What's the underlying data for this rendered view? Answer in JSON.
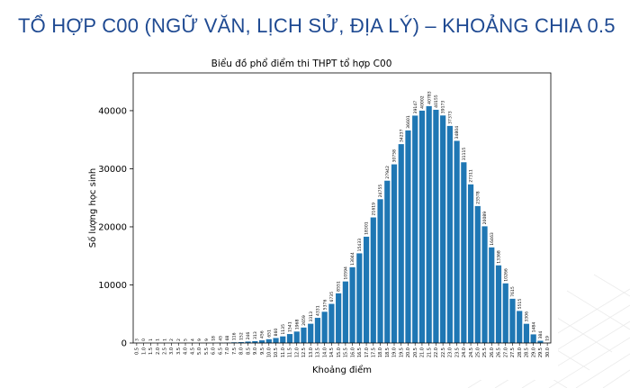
{
  "slide": {
    "title": "TỔ HỢP C00 (NGỮ VĂN, LỊCH SỬ, ĐỊA LÝ) – KHOẢNG CHIA 0.5"
  },
  "chart_data": {
    "type": "bar",
    "title": "Biểu đồ phổ điểm thi THPT tổ hợp C00",
    "xlabel": "Khoảng điểm",
    "ylabel": "Số lượng học sinh",
    "ylim": [
      0,
      46500
    ],
    "yticks": [
      0,
      10000,
      20000,
      30000,
      40000
    ],
    "bar_color": "#1f77b4",
    "grid": false,
    "categories": [
      "0.5",
      "1.0",
      "1.5",
      "2.0",
      "2.5",
      "3.0",
      "3.5",
      "4.0",
      "4.5",
      "5.0",
      "5.5",
      "6.0",
      "6.5",
      "7.0",
      "7.5",
      "8.0",
      "8.5",
      "9.0",
      "9.5",
      "10.0",
      "10.5",
      "11.0",
      "11.5",
      "12.0",
      "12.5",
      "13.0",
      "13.5",
      "14.0",
      "14.5",
      "15.0",
      "15.5",
      "16.0",
      "16.5",
      "17.0",
      "17.5",
      "18.0",
      "18.5",
      "19.0",
      "19.5",
      "20.0",
      "20.5",
      "21.0",
      "21.5",
      "22.0",
      "22.5",
      "23.0",
      "23.5",
      "24.0",
      "24.5",
      "25.0",
      "25.5",
      "26.0",
      "26.5",
      "27.0",
      "27.5",
      "28.0",
      "28.5",
      "29.0",
      "29.5",
      "30.0"
    ],
    "values": [
      3,
      0,
      1,
      1,
      1,
      2,
      2,
      5,
      4,
      9,
      9,
      18,
      45,
      68,
      116,
      152,
      246,
      313,
      456,
      651,
      860,
      1135,
      1541,
      1968,
      2659,
      3313,
      4331,
      5376,
      6735,
      8551,
      10594,
      13044,
      15433,
      18301,
      21619,
      24755,
      27942,
      30758,
      34237,
      36601,
      39147,
      40002,
      40783,
      40155,
      39173,
      37373,
      34804,
      31115,
      27311,
      23578,
      20089,
      16463,
      13368,
      10266,
      7615,
      5515,
      3306,
      1484,
      384,
      19
    ]
  }
}
